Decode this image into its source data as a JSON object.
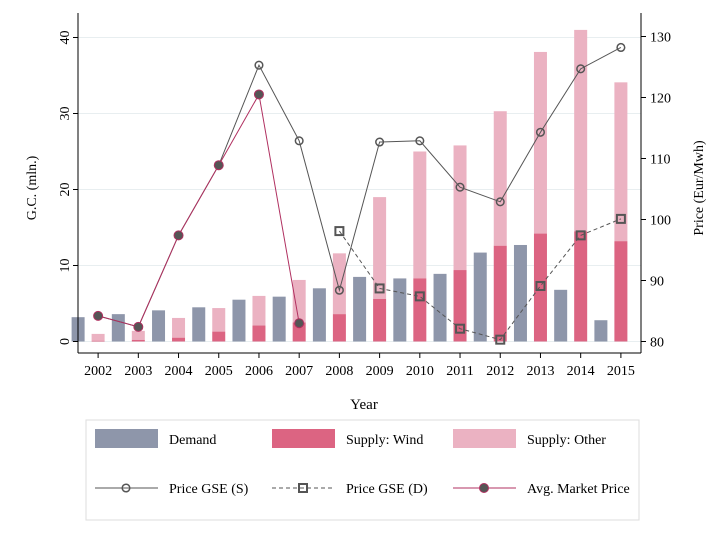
{
  "chart_data": {
    "type": "bar",
    "xlabel": "Year",
    "ylabel_left": "G.C. (mln.)",
    "ylabel_right": "Price (Eur/Mwh)",
    "ylim_left": [
      0,
      42
    ],
    "ylim_right": [
      80,
      130
    ],
    "yticks_left": [
      0,
      10,
      20,
      30,
      40
    ],
    "yticks_right": [
      80,
      90,
      100,
      110,
      120,
      130
    ],
    "grid": true,
    "legend_position": "bottom",
    "categories": [
      "2002",
      "2003",
      "2004",
      "2005",
      "2006",
      "2007",
      "2008",
      "2009",
      "2010",
      "2011",
      "2012",
      "2013",
      "2014",
      "2015"
    ],
    "bar_series": [
      {
        "name": "Demand",
        "color": "#8e96aa",
        "values": [
          3.2,
          3.6,
          4.1,
          4.5,
          5.5,
          5.9,
          7.0,
          8.5,
          8.3,
          8.9,
          11.7,
          12.7,
          6.8,
          2.8
        ]
      },
      {
        "name": "Supply: Wind",
        "color": "#dc6482",
        "values": [
          0.1,
          0.2,
          0.5,
          1.3,
          2.1,
          2.5,
          3.6,
          5.6,
          8.3,
          9.4,
          12.6,
          14.2,
          14.5,
          13.2
        ]
      },
      {
        "name": "Supply: Other",
        "color": "#ebb2c2",
        "values": [
          0.9,
          1.2,
          2.6,
          3.1,
          3.9,
          5.6,
          8.0,
          13.4,
          16.7,
          16.4,
          17.7,
          23.9,
          26.5,
          20.9
        ]
      }
    ],
    "line_series": [
      {
        "name": "Price GSE (S)",
        "color": "#555555",
        "style": "solid",
        "marker": "circle",
        "values": [
          84.2,
          82.4,
          97.4,
          108.9,
          125.3,
          112.9,
          88.4,
          112.7,
          112.9,
          105.3,
          102.9,
          114.3,
          124.7,
          128.2
        ]
      },
      {
        "name": "Price GSE (D)",
        "color": "#555555",
        "style": "dashed",
        "marker": "square",
        "values": [
          null,
          null,
          null,
          null,
          null,
          null,
          98.1,
          88.7,
          87.4,
          82.1,
          80.3,
          89.1,
          97.4,
          100.1
        ]
      },
      {
        "name": "Avg. Market Price",
        "color": "#b03060",
        "style": "solid",
        "marker": "filled-circle",
        "values": [
          84.2,
          82.4,
          97.4,
          108.9,
          120.5,
          83.0,
          null,
          null,
          null,
          null,
          null,
          null,
          null,
          null
        ]
      }
    ]
  }
}
